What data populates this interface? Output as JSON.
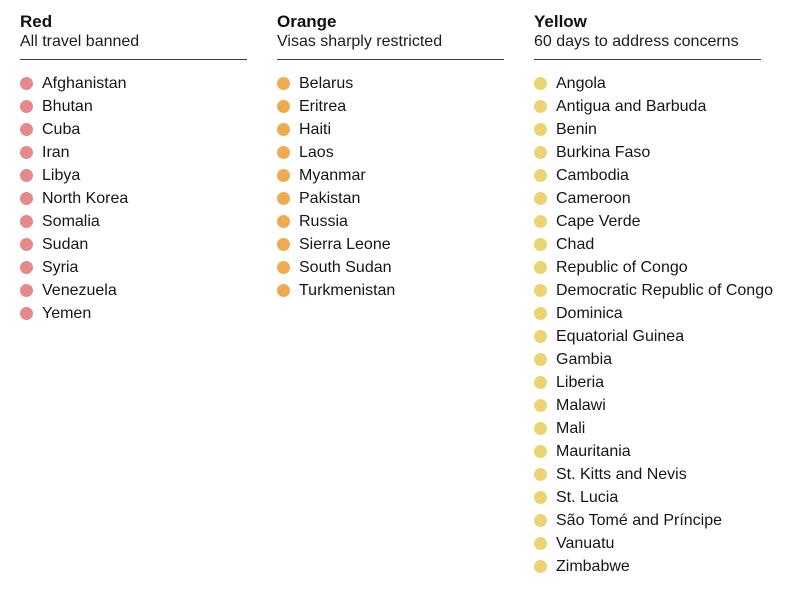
{
  "page": {
    "background": "#ffffff",
    "text_color": "#161616",
    "rule_color": "#3d3d3d"
  },
  "columns": [
    {
      "id": "red",
      "title": "Red",
      "subtitle": "All travel banned",
      "dot_color": "#e5898c",
      "countries": [
        "Afghanistan",
        "Bhutan",
        "Cuba",
        "Iran",
        "Libya",
        "North Korea",
        "Somalia",
        "Sudan",
        "Syria",
        "Venezuela",
        "Yemen"
      ]
    },
    {
      "id": "orange",
      "title": "Orange",
      "subtitle": "Visas sharply restricted",
      "dot_color": "#eeab50",
      "countries": [
        "Belarus",
        "Eritrea",
        "Haiti",
        "Laos",
        "Myanmar",
        "Pakistan",
        "Russia",
        "Sierra Leone",
        "South Sudan",
        "Turkmenistan"
      ]
    },
    {
      "id": "yellow",
      "title": "Yellow",
      "subtitle": "60 days to address concerns",
      "dot_color": "#ecd472",
      "countries": [
        "Angola",
        "Antigua and Barbuda",
        "Benin",
        "Burkina Faso",
        "Cambodia",
        "Cameroon",
        "Cape Verde",
        "Chad",
        "Republic of Congo",
        "Democratic Republic of Congo",
        "Dominica",
        "Equatorial Guinea",
        "Gambia",
        "Liberia",
        "Malawi",
        "Mali",
        "Mauritania",
        "St. Kitts and Nevis",
        "St. Lucia",
        "São Tomé and Príncipe",
        "Vanuatu",
        "Zimbabwe"
      ]
    }
  ]
}
